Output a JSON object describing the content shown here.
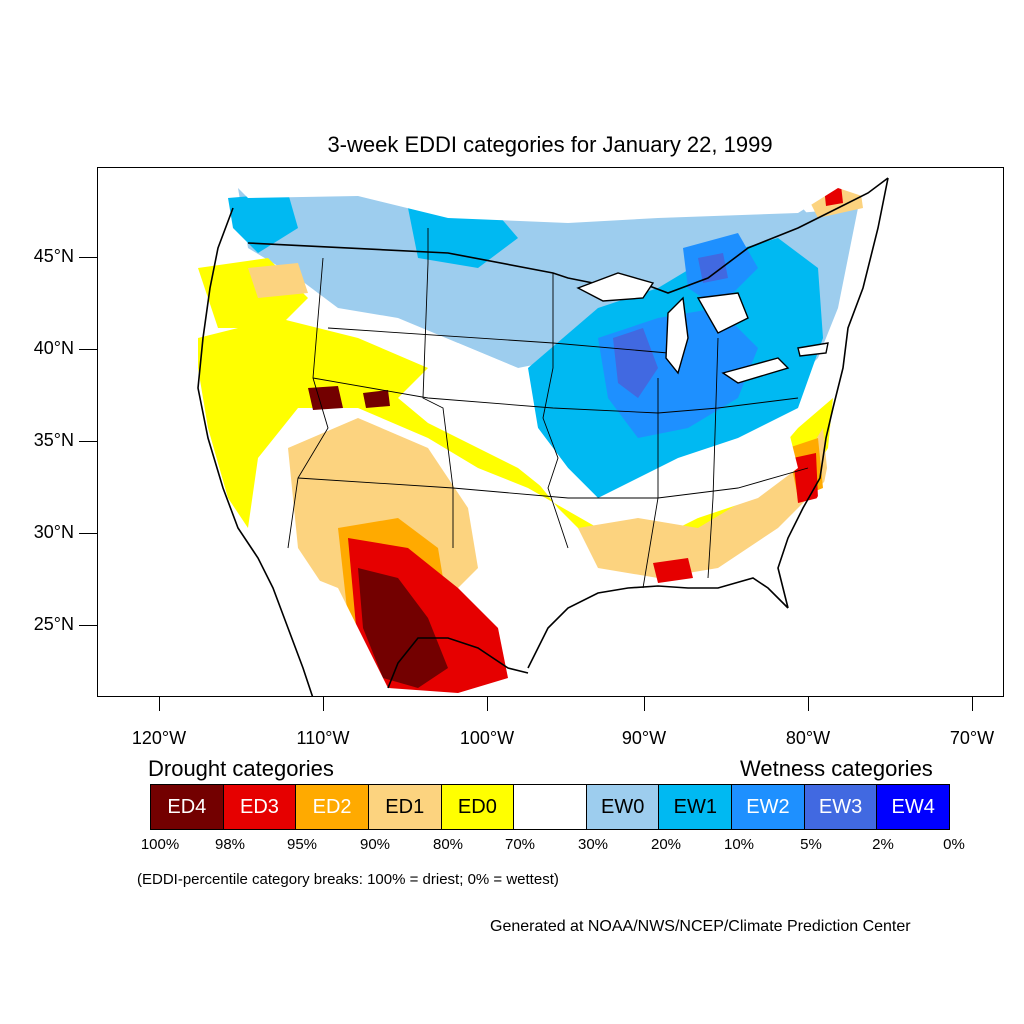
{
  "title": "3-week EDDI categories for January 22, 1999",
  "axes": {
    "lat_labels": [
      "45°N",
      "40°N",
      "35°N",
      "30°N",
      "25°N"
    ],
    "lon_labels": [
      "120°W",
      "110°W",
      "100°W",
      "90°W",
      "80°W",
      "70°W"
    ]
  },
  "legend": {
    "drought_heading": "Drought categories",
    "wetness_heading": "Wetness categories",
    "categories": [
      {
        "label": "ED4",
        "color": "#730000",
        "text_color": "#ffffff"
      },
      {
        "label": "ED3",
        "color": "#e60000",
        "text_color": "#ffffff"
      },
      {
        "label": "ED2",
        "color": "#ffaa00",
        "text_color": "#ffffff"
      },
      {
        "label": "ED1",
        "color": "#fcd37f",
        "text_color": "#000000"
      },
      {
        "label": "ED0",
        "color": "#ffff00",
        "text_color": "#000000"
      },
      {
        "label": "",
        "color": "#ffffff",
        "text_color": "#000000"
      },
      {
        "label": "EW0",
        "color": "#9dcdee",
        "text_color": "#000000"
      },
      {
        "label": "EW1",
        "color": "#00b9f2",
        "text_color": "#000000"
      },
      {
        "label": "EW2",
        "color": "#1e90ff",
        "text_color": "#ffffff"
      },
      {
        "label": "EW3",
        "color": "#4169e1",
        "text_color": "#ffffff"
      },
      {
        "label": "EW4",
        "color": "#0000ff",
        "text_color": "#ffffff"
      }
    ],
    "percentile_breaks": [
      "100%",
      "98%",
      "95%",
      "90%",
      "80%",
      "70%",
      "30%",
      "20%",
      "10%",
      "5%",
      "2%",
      "0%"
    ]
  },
  "footnote": "(EDDI-percentile category breaks: 100% = driest; 0% = wettest)",
  "credit": "Generated at NOAA/NWS/NCEP/Climate Prediction Center"
}
